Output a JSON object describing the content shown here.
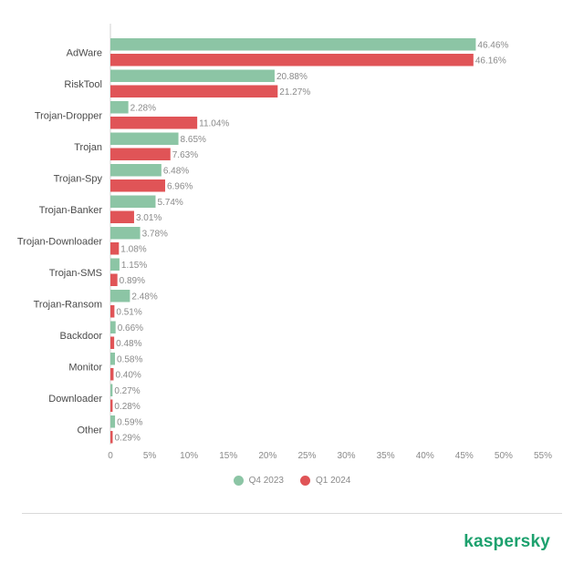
{
  "chart_data": {
    "type": "bar",
    "orientation": "horizontal",
    "categories": [
      "AdWare",
      "RiskTool",
      "Trojan-Dropper",
      "Trojan",
      "Trojan-Spy",
      "Trojan-Banker",
      "Trojan-Downloader",
      "Trojan-SMS",
      "Trojan-Ransom",
      "Backdoor",
      "Monitor",
      "Downloader",
      "Other"
    ],
    "series": [
      {
        "name": "Q4 2023",
        "color": "#8cc5a5",
        "values": [
          46.46,
          20.88,
          2.28,
          8.65,
          6.48,
          5.74,
          3.78,
          1.15,
          2.48,
          0.66,
          0.58,
          0.27,
          0.59
        ],
        "labels": [
          "46.46%",
          "20.88%",
          "2.28%",
          "8.65%",
          "6.48%",
          "5.74%",
          "3.78%",
          "1.15%",
          "2.48%",
          "0.66%",
          "0.58%",
          "0.27%",
          "0.59%"
        ]
      },
      {
        "name": "Q1 2024",
        "color": "#e05457",
        "values": [
          46.16,
          21.27,
          11.04,
          7.63,
          6.96,
          3.01,
          1.08,
          0.89,
          0.51,
          0.48,
          0.4,
          0.28,
          0.29
        ],
        "labels": [
          "46.16%",
          "21.27%",
          "11.04%",
          "7.63%",
          "6.96%",
          "3.01%",
          "1.08%",
          "0.89%",
          "0.51%",
          "0.48%",
          "0.40%",
          "0.28%",
          "0.29%"
        ]
      }
    ],
    "xlim": [
      0,
      55
    ],
    "xticks": [
      0,
      5,
      10,
      15,
      20,
      25,
      30,
      35,
      40,
      45,
      50,
      55
    ],
    "xtick_labels": [
      "0",
      "5%",
      "10%",
      "15%",
      "20%",
      "25%",
      "30%",
      "35%",
      "40%",
      "45%",
      "50%",
      "55%"
    ],
    "legend_position": "bottom-center",
    "grid": false
  },
  "brand": {
    "name": "kaspersky",
    "color": "#1da16e"
  }
}
